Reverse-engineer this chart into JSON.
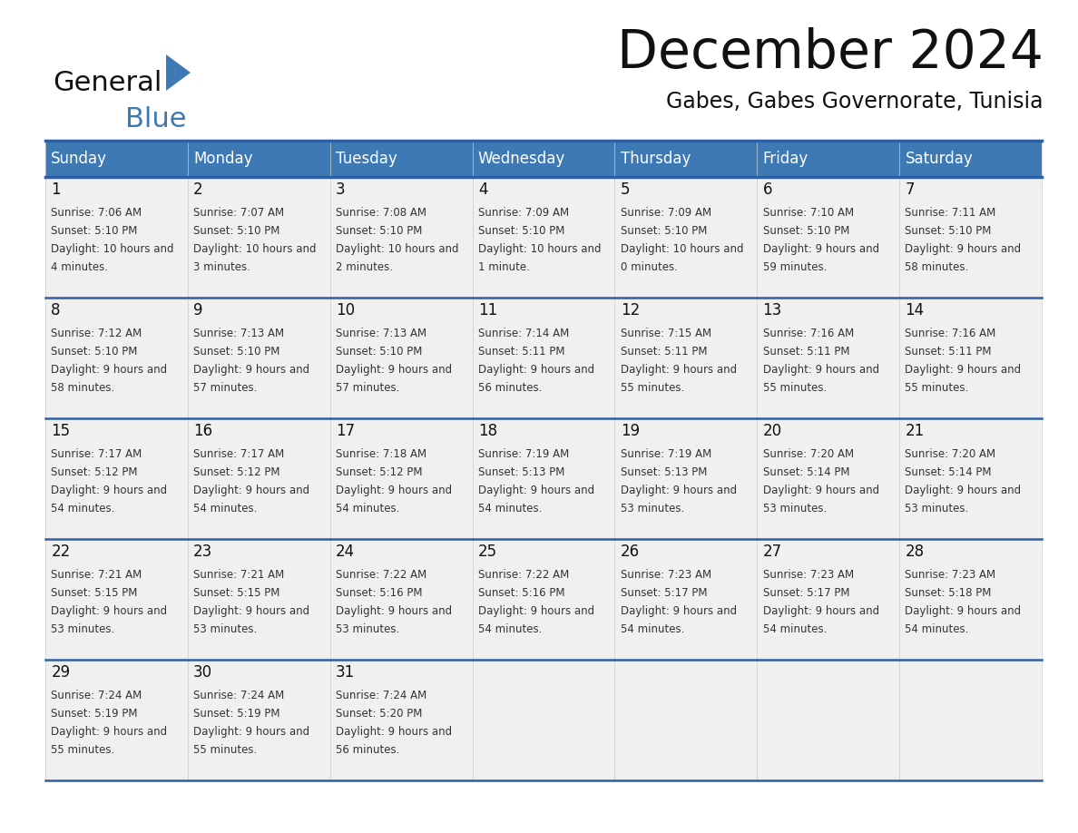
{
  "title": "December 2024",
  "subtitle": "Gabes, Gabes Governorate, Tunisia",
  "header_color": "#3d7ab5",
  "header_text_color": "#ffffff",
  "cell_bg_color": "#f0f0f0",
  "border_color": "#2e5fa3",
  "text_color": "#333333",
  "day_number_color": "#111111",
  "logo_color_general": "#111111",
  "logo_color_blue": "#3d7ab5",
  "logo_triangle_color": "#3d7ab5",
  "day_names": [
    "Sunday",
    "Monday",
    "Tuesday",
    "Wednesday",
    "Thursday",
    "Friday",
    "Saturday"
  ],
  "days": [
    {
      "day": 1,
      "col": 0,
      "row": 0,
      "sunrise": "7:06 AM",
      "sunset": "5:10 PM",
      "daylight": "10 hours and 4 minutes."
    },
    {
      "day": 2,
      "col": 1,
      "row": 0,
      "sunrise": "7:07 AM",
      "sunset": "5:10 PM",
      "daylight": "10 hours and 3 minutes."
    },
    {
      "day": 3,
      "col": 2,
      "row": 0,
      "sunrise": "7:08 AM",
      "sunset": "5:10 PM",
      "daylight": "10 hours and 2 minutes."
    },
    {
      "day": 4,
      "col": 3,
      "row": 0,
      "sunrise": "7:09 AM",
      "sunset": "5:10 PM",
      "daylight": "10 hours and 1 minute."
    },
    {
      "day": 5,
      "col": 4,
      "row": 0,
      "sunrise": "7:09 AM",
      "sunset": "5:10 PM",
      "daylight": "10 hours and 0 minutes."
    },
    {
      "day": 6,
      "col": 5,
      "row": 0,
      "sunrise": "7:10 AM",
      "sunset": "5:10 PM",
      "daylight": "9 hours and 59 minutes."
    },
    {
      "day": 7,
      "col": 6,
      "row": 0,
      "sunrise": "7:11 AM",
      "sunset": "5:10 PM",
      "daylight": "9 hours and 58 minutes."
    },
    {
      "day": 8,
      "col": 0,
      "row": 1,
      "sunrise": "7:12 AM",
      "sunset": "5:10 PM",
      "daylight": "9 hours and 58 minutes."
    },
    {
      "day": 9,
      "col": 1,
      "row": 1,
      "sunrise": "7:13 AM",
      "sunset": "5:10 PM",
      "daylight": "9 hours and 57 minutes."
    },
    {
      "day": 10,
      "col": 2,
      "row": 1,
      "sunrise": "7:13 AM",
      "sunset": "5:10 PM",
      "daylight": "9 hours and 57 minutes."
    },
    {
      "day": 11,
      "col": 3,
      "row": 1,
      "sunrise": "7:14 AM",
      "sunset": "5:11 PM",
      "daylight": "9 hours and 56 minutes."
    },
    {
      "day": 12,
      "col": 4,
      "row": 1,
      "sunrise": "7:15 AM",
      "sunset": "5:11 PM",
      "daylight": "9 hours and 55 minutes."
    },
    {
      "day": 13,
      "col": 5,
      "row": 1,
      "sunrise": "7:16 AM",
      "sunset": "5:11 PM",
      "daylight": "9 hours and 55 minutes."
    },
    {
      "day": 14,
      "col": 6,
      "row": 1,
      "sunrise": "7:16 AM",
      "sunset": "5:11 PM",
      "daylight": "9 hours and 55 minutes."
    },
    {
      "day": 15,
      "col": 0,
      "row": 2,
      "sunrise": "7:17 AM",
      "sunset": "5:12 PM",
      "daylight": "9 hours and 54 minutes."
    },
    {
      "day": 16,
      "col": 1,
      "row": 2,
      "sunrise": "7:17 AM",
      "sunset": "5:12 PM",
      "daylight": "9 hours and 54 minutes."
    },
    {
      "day": 17,
      "col": 2,
      "row": 2,
      "sunrise": "7:18 AM",
      "sunset": "5:12 PM",
      "daylight": "9 hours and 54 minutes."
    },
    {
      "day": 18,
      "col": 3,
      "row": 2,
      "sunrise": "7:19 AM",
      "sunset": "5:13 PM",
      "daylight": "9 hours and 54 minutes."
    },
    {
      "day": 19,
      "col": 4,
      "row": 2,
      "sunrise": "7:19 AM",
      "sunset": "5:13 PM",
      "daylight": "9 hours and 53 minutes."
    },
    {
      "day": 20,
      "col": 5,
      "row": 2,
      "sunrise": "7:20 AM",
      "sunset": "5:14 PM",
      "daylight": "9 hours and 53 minutes."
    },
    {
      "day": 21,
      "col": 6,
      "row": 2,
      "sunrise": "7:20 AM",
      "sunset": "5:14 PM",
      "daylight": "9 hours and 53 minutes."
    },
    {
      "day": 22,
      "col": 0,
      "row": 3,
      "sunrise": "7:21 AM",
      "sunset": "5:15 PM",
      "daylight": "9 hours and 53 minutes."
    },
    {
      "day": 23,
      "col": 1,
      "row": 3,
      "sunrise": "7:21 AM",
      "sunset": "5:15 PM",
      "daylight": "9 hours and 53 minutes."
    },
    {
      "day": 24,
      "col": 2,
      "row": 3,
      "sunrise": "7:22 AM",
      "sunset": "5:16 PM",
      "daylight": "9 hours and 53 minutes."
    },
    {
      "day": 25,
      "col": 3,
      "row": 3,
      "sunrise": "7:22 AM",
      "sunset": "5:16 PM",
      "daylight": "9 hours and 54 minutes."
    },
    {
      "day": 26,
      "col": 4,
      "row": 3,
      "sunrise": "7:23 AM",
      "sunset": "5:17 PM",
      "daylight": "9 hours and 54 minutes."
    },
    {
      "day": 27,
      "col": 5,
      "row": 3,
      "sunrise": "7:23 AM",
      "sunset": "5:17 PM",
      "daylight": "9 hours and 54 minutes."
    },
    {
      "day": 28,
      "col": 6,
      "row": 3,
      "sunrise": "7:23 AM",
      "sunset": "5:18 PM",
      "daylight": "9 hours and 54 minutes."
    },
    {
      "day": 29,
      "col": 0,
      "row": 4,
      "sunrise": "7:24 AM",
      "sunset": "5:19 PM",
      "daylight": "9 hours and 55 minutes."
    },
    {
      "day": 30,
      "col": 1,
      "row": 4,
      "sunrise": "7:24 AM",
      "sunset": "5:19 PM",
      "daylight": "9 hours and 55 minutes."
    },
    {
      "day": 31,
      "col": 2,
      "row": 4,
      "sunrise": "7:24 AM",
      "sunset": "5:20 PM",
      "daylight": "9 hours and 56 minutes."
    }
  ],
  "num_rows": 5,
  "num_cols": 7
}
